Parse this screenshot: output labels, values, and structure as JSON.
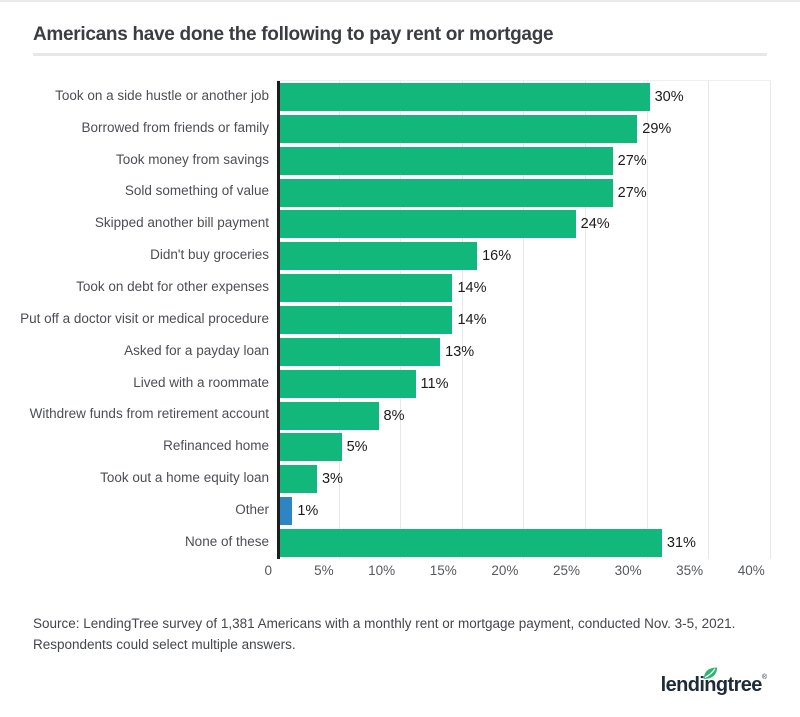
{
  "title": "Americans have done the following to pay rent or mortgage",
  "chart_data": {
    "type": "bar",
    "orientation": "horizontal",
    "title": "Americans have done the following to pay rent or mortgage",
    "categories": [
      "Took on a side hustle or another job",
      "Borrowed from friends or family",
      "Took money from savings",
      "Sold something of value",
      "Skipped another bill payment",
      "Didn't buy groceries",
      "Took on debt for other expenses",
      "Put off a doctor visit or medical procedure",
      "Asked for a payday loan",
      "Lived with a roommate",
      "Withdrew funds from retirement account",
      "Refinanced home",
      "Took out a home equity loan",
      "Other",
      "None of these"
    ],
    "values": [
      30,
      29,
      27,
      27,
      24,
      16,
      14,
      14,
      13,
      11,
      8,
      5,
      3,
      1,
      31
    ],
    "value_suffix": "%",
    "bar_color": "#12b77b",
    "highlight": {
      "category": "Other",
      "color": "#2d86c2"
    },
    "xlim": [
      0,
      40
    ],
    "x_ticks": [
      "0",
      "5%",
      "10%",
      "15%",
      "20%",
      "25%",
      "30%",
      "35%",
      "40%"
    ],
    "x_tick_step": 5,
    "grid": "vertical",
    "gridline_color": "#e8e8e8",
    "axis_line_color": "#1d1d1d"
  },
  "source": {
    "line1": "Source: LendingTree survey of 1,381 Americans with a monthly rent or mortgage payment, conducted Nov. 3-5, 2021.",
    "line2": "Respondents could select multiple answers."
  },
  "logo": {
    "text": "lendingtree",
    "trademark": "®",
    "leaf_color": "#2cb472",
    "text_color": "#1e2b39"
  }
}
